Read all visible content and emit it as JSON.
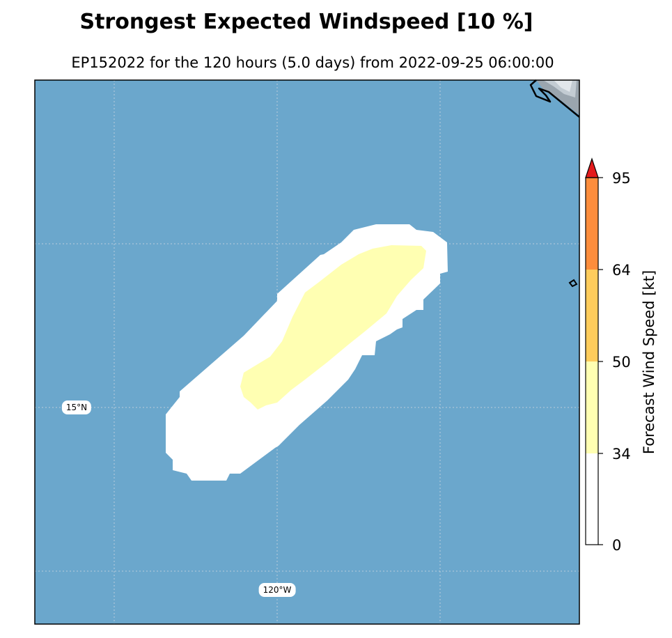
{
  "title": "Strongest Expected Windspeed [10 %]",
  "subtitle": "EP152022 for the 120 hours (5.0 days) from 2022-09-25 06:00:00",
  "colorbar": {
    "label": "Forecast Wind Speed [kt]",
    "ticks": [
      "0",
      "34",
      "50",
      "64",
      "95"
    ],
    "colors": {
      "below_34": "#ffffff",
      "34_50": "#ffffb2",
      "50_64": "#fecc5c",
      "64_95": "#fd8d3c",
      "above_95": "#e31a1c"
    },
    "extend": "max"
  },
  "map": {
    "ocean_color": "#6ba7cc",
    "gridline_color": "#d0d8e0",
    "lat_label": "15°N",
    "lon_label": "120°W",
    "coastline_color": "#000000",
    "land_shading": "gray"
  },
  "wind_regions": [
    {
      "category": "0-34",
      "color": "#ffffff"
    },
    {
      "category": "34-50",
      "color": "#ffffb2"
    }
  ]
}
